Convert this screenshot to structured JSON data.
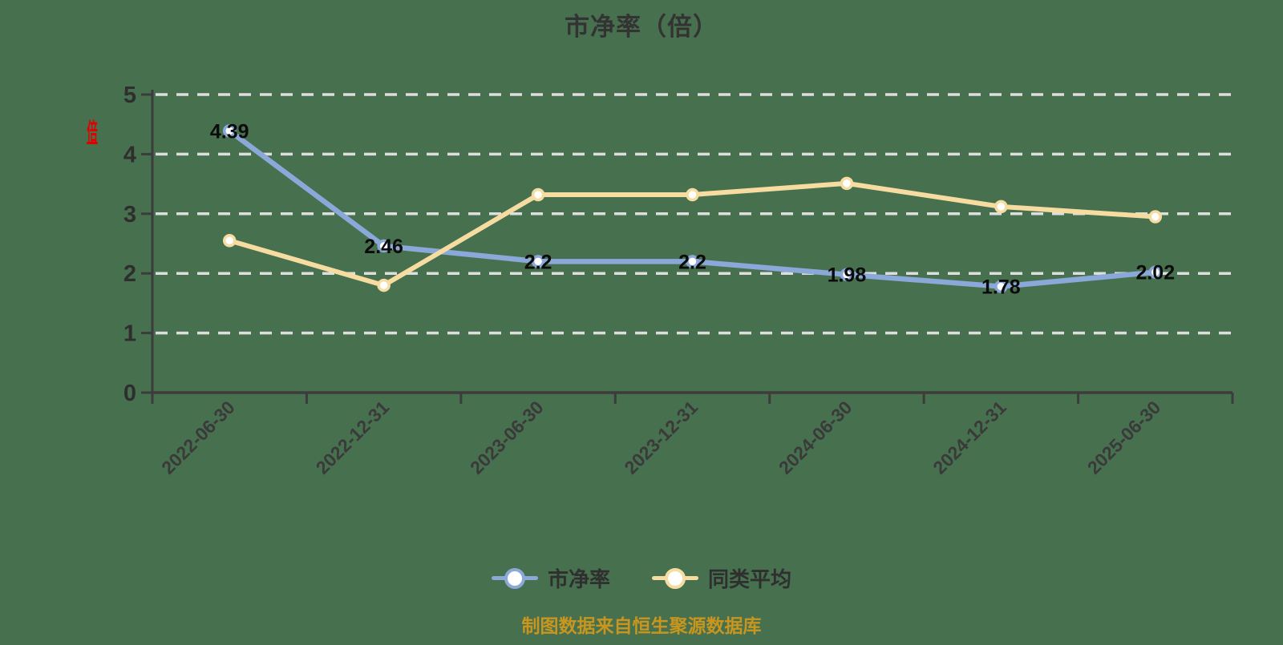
{
  "caption": "制图数据来自恒生聚源数据库",
  "colors": {
    "background": "#47704F",
    "title": "#333333",
    "axis": "#3C3C3C",
    "grid": "#DEDEDE",
    "y_tick_label": "#2E2E2E",
    "x_tick_label": "#3A3A3A",
    "data_label": "#0B0B0B",
    "legend_text": "#2F2F2F",
    "caption_text": "#C8961E",
    "y_unit": "#E00000",
    "marker_fill": "#FFFFFF"
  },
  "chart_data": {
    "type": "line",
    "title": "市净率（倍）",
    "xlabel": "",
    "ylabel": "倍",
    "ylim": [
      0,
      5
    ],
    "yticks": [
      0,
      1,
      2,
      3,
      4,
      5
    ],
    "grid": "dashed-horizontal",
    "legend_position": "bottom",
    "categories": [
      "2022-06-30",
      "2022-12-31",
      "2023-06-30",
      "2023-12-31",
      "2024-06-30",
      "2024-12-31",
      "2025-06-30"
    ],
    "series": [
      {
        "name": "市净率",
        "color": "#8AA8D8",
        "values": [
          4.39,
          2.46,
          2.2,
          2.2,
          1.98,
          1.78,
          2.02
        ],
        "point_labels": [
          "4.39",
          "2.46",
          "2.2",
          "2.2",
          "1.98",
          "1.78",
          "2.02"
        ],
        "show_labels": true
      },
      {
        "name": "同类平均",
        "color": "#F7DCA2",
        "values": [
          2.55,
          1.8,
          3.32,
          3.32,
          3.51,
          3.12,
          2.95
        ],
        "show_labels": false
      }
    ]
  }
}
